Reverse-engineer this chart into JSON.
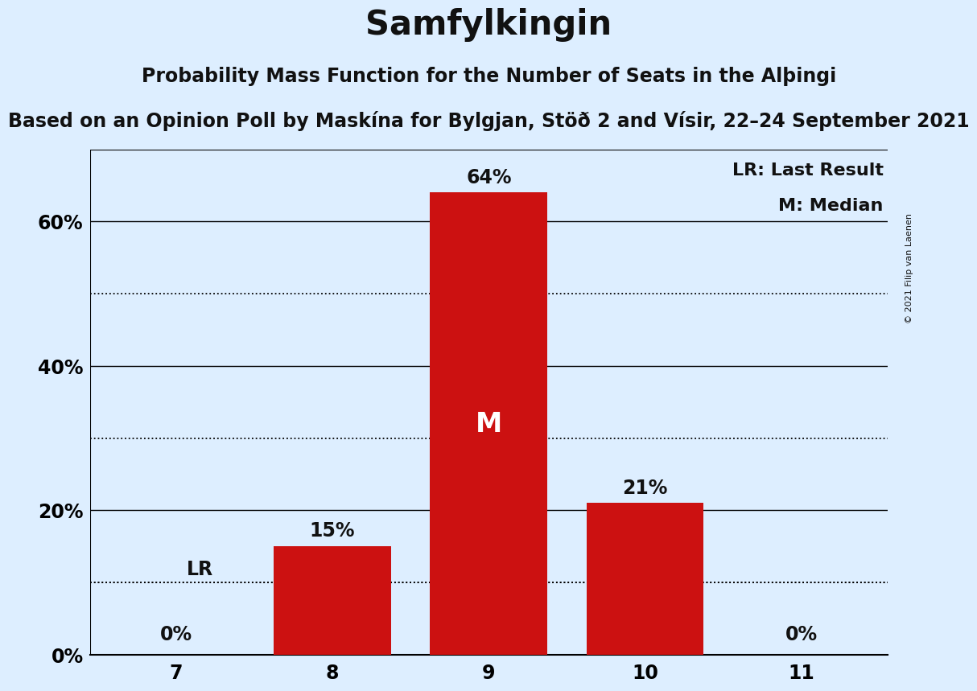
{
  "title": "Samfylkingin",
  "subtitle1": "Probability Mass Function for the Number of Seats in the Alþingi",
  "subtitle2": "Based on an Opinion Poll by Maskína for Bylgjan, Stöð 2 and Vísir, 22–24 September 2021",
  "categories": [
    7,
    8,
    9,
    10,
    11
  ],
  "values": [
    0,
    15,
    64,
    21,
    0
  ],
  "bar_color": "#cc1111",
  "background_color": "#ddeeff",
  "text_color": "#111111",
  "bar_label_color_outside": "#111111",
  "bar_label_color_inside": "#ffffff",
  "ylim": [
    0,
    70
  ],
  "ytick_positions": [
    0,
    20,
    40,
    60
  ],
  "ytick_labels": [
    "0%",
    "20%",
    "40%",
    "60%"
  ],
  "dotted_lines": [
    10,
    30,
    50
  ],
  "solid_lines": [
    20,
    40,
    60
  ],
  "lr_value": 10,
  "lr_seat_idx": 0,
  "median_seat_idx": 2,
  "legend_lr": "LR: Last Result",
  "legend_m": "M: Median",
  "copyright": "© 2021 Filip van Laenen",
  "title_fontsize": 30,
  "subtitle1_fontsize": 17,
  "subtitle2_fontsize": 17,
  "tick_fontsize": 17,
  "label_fontsize": 17,
  "legend_fontsize": 16,
  "median_fontsize": 24
}
